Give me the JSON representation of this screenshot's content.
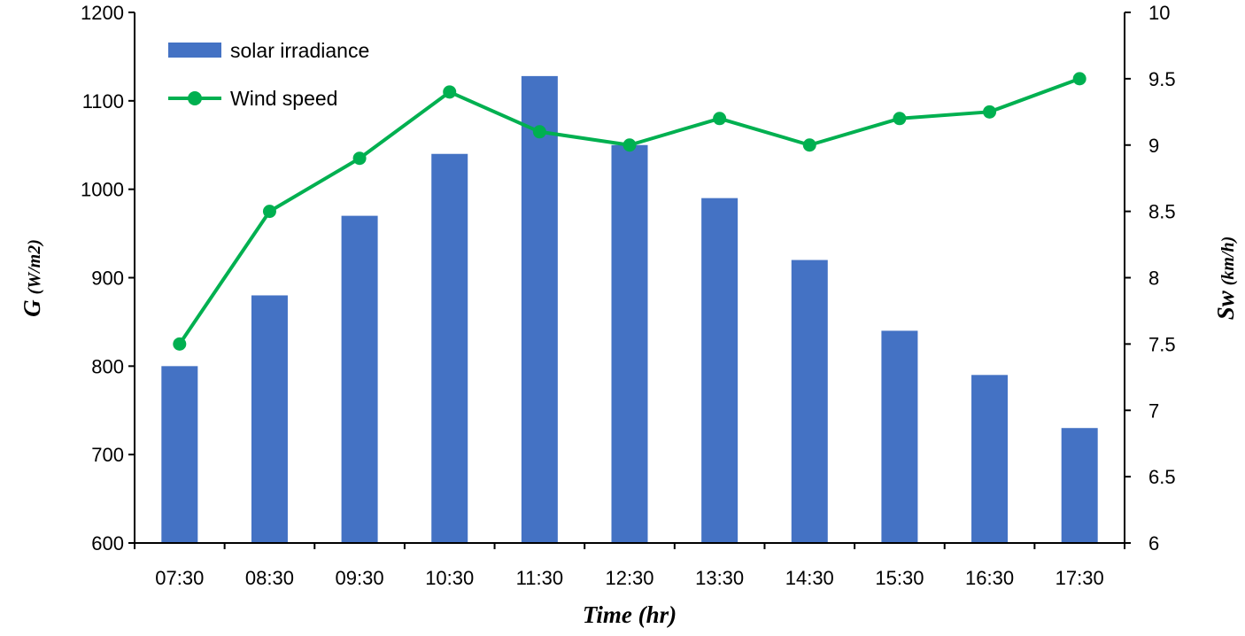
{
  "chart_data": {
    "type": "bar",
    "categories": [
      "07:30",
      "08:30",
      "09:30",
      "10:30",
      "11:30",
      "12:30",
      "13:30",
      "14:30",
      "15:30",
      "16:30",
      "17:30"
    ],
    "series": [
      {
        "name": "solar irradiance",
        "type": "bar",
        "axis": "left",
        "color": "#4472C4",
        "values": [
          800,
          880,
          970,
          1040,
          1128,
          1050,
          990,
          920,
          840,
          790,
          730
        ]
      },
      {
        "name": "Wind speed",
        "type": "line",
        "axis": "right",
        "color": "#00B050",
        "marker": "circle",
        "values": [
          7.5,
          8.5,
          8.9,
          9.4,
          9.1,
          9.0,
          9.2,
          9.0,
          9.2,
          9.25,
          9.5
        ]
      }
    ],
    "xlabel": "Time (hr)",
    "ylabel_left": {
      "main": "G",
      "unit": "(W/m2)"
    },
    "ylabel_right": {
      "main": "Sw",
      "unit": "(km/h)"
    },
    "ylim_left": [
      600,
      1200
    ],
    "yticks_left": [
      "600",
      "700",
      "800",
      "900",
      "1000",
      "1100",
      "1200"
    ],
    "ylim_right": [
      6,
      10
    ],
    "yticks_right": [
      "6",
      "6.5",
      "7",
      "7.5",
      "8",
      "8.5",
      "9",
      "9.5",
      "10"
    ],
    "grid": false,
    "legend_position": "top-left"
  }
}
